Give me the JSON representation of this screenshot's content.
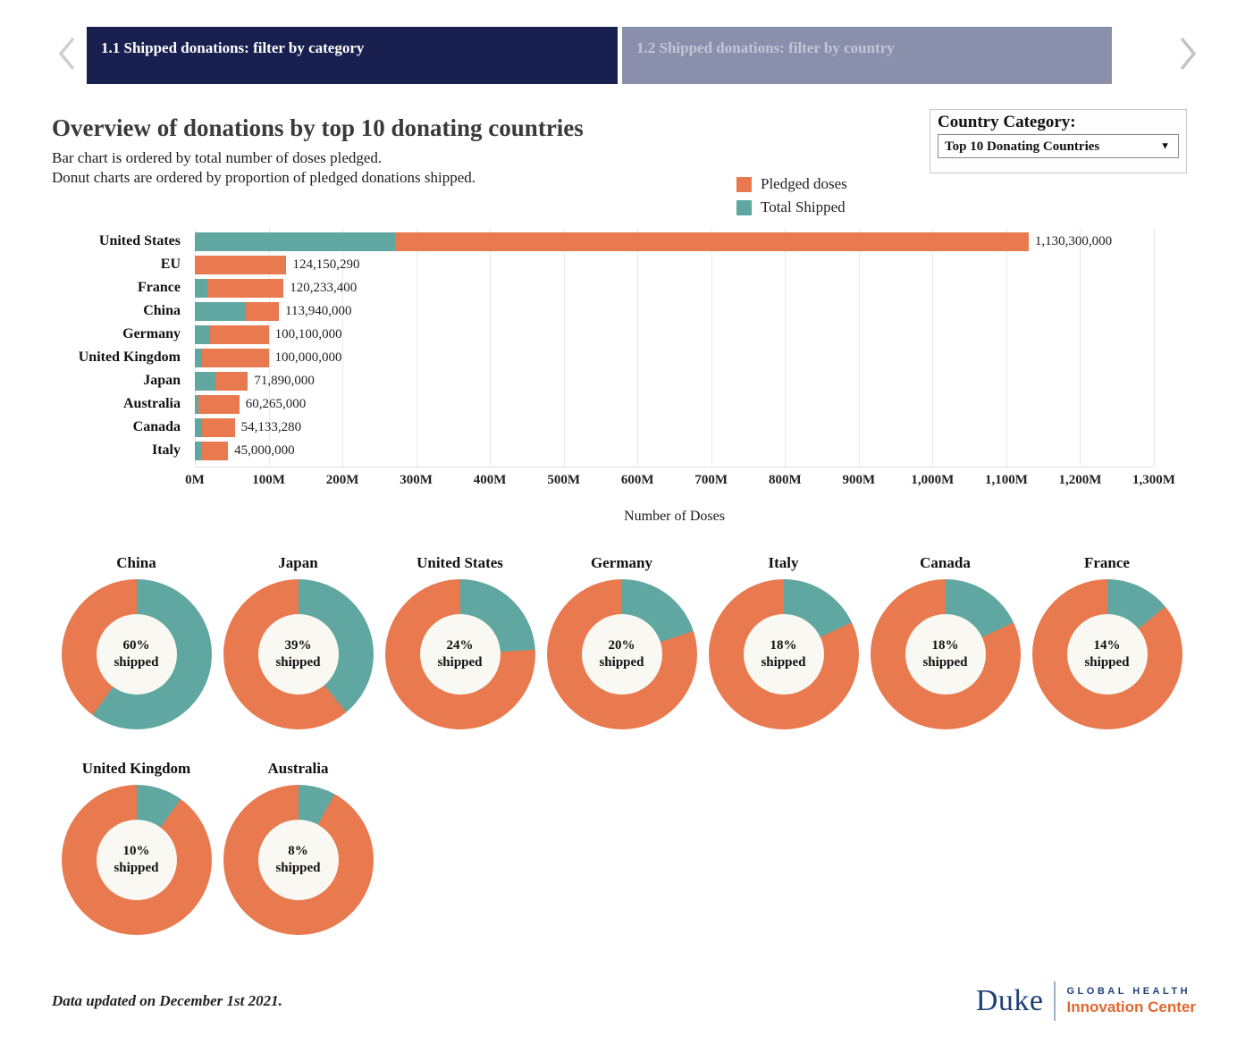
{
  "tabs": {
    "items": [
      {
        "label": "1.1 Shipped donations: filter by category",
        "active": true
      },
      {
        "label": "1.2 Shipped donations: filter by country",
        "active": false
      }
    ]
  },
  "header": {
    "title": "Overview of donations by top 10 donating countries",
    "subtitle_line1": "Bar chart is ordered by total number of doses pledged.",
    "subtitle_line2": "Donut charts are ordered by proportion of pledged donations shipped."
  },
  "filter": {
    "label": "Country Category:",
    "selected": "Top 10 Donating Countries"
  },
  "legend": {
    "items": [
      {
        "label": "Pledged doses",
        "color": "#E97A4F"
      },
      {
        "label": "Total Shipped",
        "color": "#5FA7A0"
      }
    ]
  },
  "chart_data": [
    {
      "type": "bar",
      "orientation": "horizontal",
      "categories": [
        "United States",
        "EU",
        "France",
        "China",
        "Germany",
        "United Kingdom",
        "Japan",
        "Australia",
        "Canada",
        "Italy"
      ],
      "series": [
        {
          "name": "Pledged doses",
          "color": "#E97A4F",
          "values": [
            1130300000,
            124150290,
            120233400,
            113940000,
            100100000,
            100000000,
            71890000,
            60265000,
            54133280,
            45000000
          ]
        },
        {
          "name": "Total Shipped",
          "color": "#5FA7A0",
          "values": [
            271272000,
            0,
            16832676,
            68364000,
            20020000,
            10000000,
            28037100,
            4821200,
            9743990,
            8100000
          ]
        }
      ],
      "value_labels": [
        "1,130,300,000",
        "124,150,290",
        "120,233,400",
        "113,940,000",
        "100,100,000",
        "100,000,000",
        "71,890,000",
        "60,265,000",
        "54,133,280",
        "45,000,000"
      ],
      "xlabel": "Number of Doses",
      "xlim": [
        0,
        1300000000
      ],
      "x_ticks": [
        "0M",
        "100M",
        "200M",
        "300M",
        "400M",
        "500M",
        "600M",
        "700M",
        "800M",
        "900M",
        "1,000M",
        "1,100M",
        "1,200M",
        "1,300M"
      ],
      "grid": true,
      "legend_position": "top-right"
    },
    {
      "type": "pie",
      "style": "donut",
      "center_suffix": "shipped",
      "shipped_color": "#5FA7A0",
      "remainder_color": "#E97A4F",
      "items": [
        {
          "country": "China",
          "shipped_pct": 60
        },
        {
          "country": "Japan",
          "shipped_pct": 39
        },
        {
          "country": "United States",
          "shipped_pct": 24
        },
        {
          "country": "Germany",
          "shipped_pct": 20
        },
        {
          "country": "Italy",
          "shipped_pct": 18
        },
        {
          "country": "Canada",
          "shipped_pct": 18
        },
        {
          "country": "France",
          "shipped_pct": 14
        },
        {
          "country": "United Kingdom",
          "shipped_pct": 10
        },
        {
          "country": "Australia",
          "shipped_pct": 8
        }
      ]
    }
  ],
  "footer": {
    "note": "Data updated on December 1st 2021.",
    "logo": {
      "wordmark": "Duke",
      "line1": "GLOBAL HEALTH",
      "line2": "Innovation Center"
    }
  }
}
